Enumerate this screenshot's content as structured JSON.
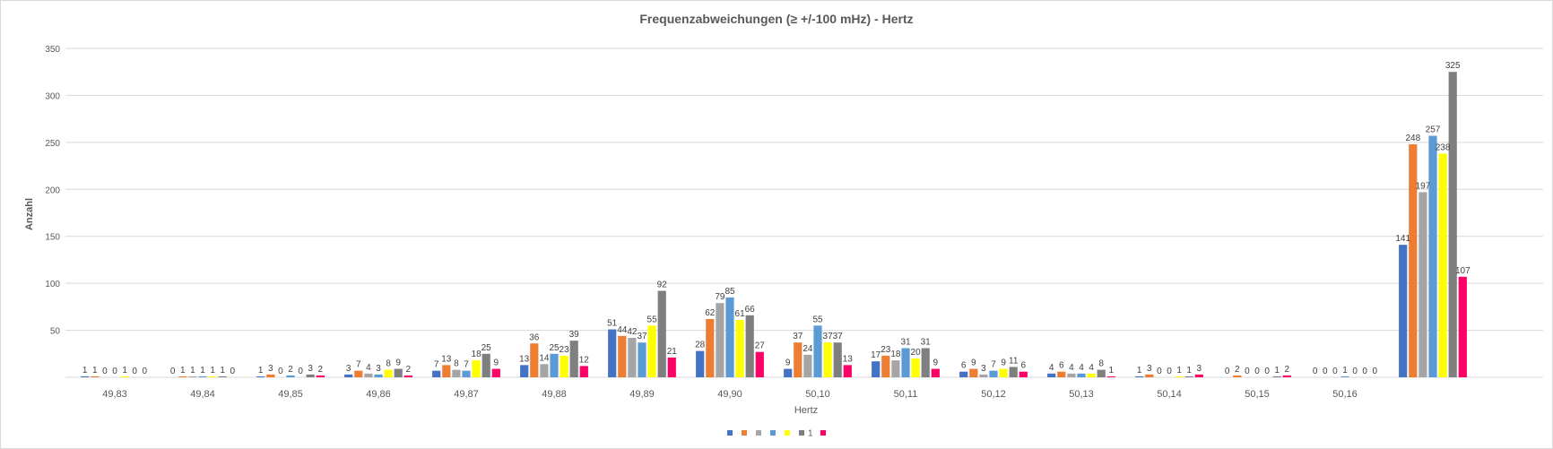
{
  "chart_data": {
    "type": "bar",
    "title": "Frequenzabweichungen (≥ +/-100 mHz) - Hertz",
    "xlabel": "Hertz",
    "ylabel": "Anzahl",
    "ylim": [
      0,
      350
    ],
    "yticks": [
      50,
      100,
      150,
      200,
      250,
      300,
      350
    ],
    "grid": true,
    "legend_position": "bottom",
    "categories": [
      "49,83",
      "49,84",
      "49,85",
      "49,86",
      "49,87",
      "49,88",
      "49,89",
      "49,90",
      "50,10",
      "50,11",
      "50,12",
      "50,13",
      "50,14",
      "50,15",
      "50,16",
      ""
    ],
    "series": [
      {
        "name": "",
        "color": "#4472c4",
        "values": [
          1,
          0,
          1,
          3,
          7,
          13,
          51,
          28,
          9,
          17,
          6,
          4,
          1,
          0,
          0,
          141
        ]
      },
      {
        "name": "",
        "color": "#ed7d31",
        "values": [
          1,
          1,
          3,
          7,
          13,
          36,
          44,
          62,
          37,
          23,
          9,
          6,
          3,
          2,
          0,
          248
        ]
      },
      {
        "name": "",
        "color": "#a5a5a5",
        "values": [
          0,
          1,
          0,
          4,
          8,
          14,
          42,
          79,
          24,
          18,
          3,
          4,
          0,
          0,
          0,
          197
        ]
      },
      {
        "name": "",
        "color": "#5b9bd5",
        "values": [
          0,
          1,
          2,
          3,
          7,
          25,
          37,
          85,
          55,
          31,
          7,
          4,
          0,
          0,
          1,
          257
        ]
      },
      {
        "name": "",
        "color": "#ffff00",
        "values": [
          1,
          1,
          0,
          8,
          18,
          23,
          55,
          61,
          37,
          20,
          9,
          4,
          1,
          0,
          0,
          238
        ]
      },
      {
        "name": "1",
        "color": "#7f7f7f",
        "values": [
          0,
          1,
          3,
          9,
          25,
          39,
          92,
          66,
          37,
          31,
          11,
          8,
          1,
          1,
          0,
          325
        ]
      },
      {
        "name": "",
        "color": "#ff0066",
        "values": [
          0,
          0,
          2,
          2,
          9,
          12,
          21,
          27,
          13,
          9,
          6,
          1,
          3,
          2,
          0,
          107
        ]
      }
    ]
  }
}
